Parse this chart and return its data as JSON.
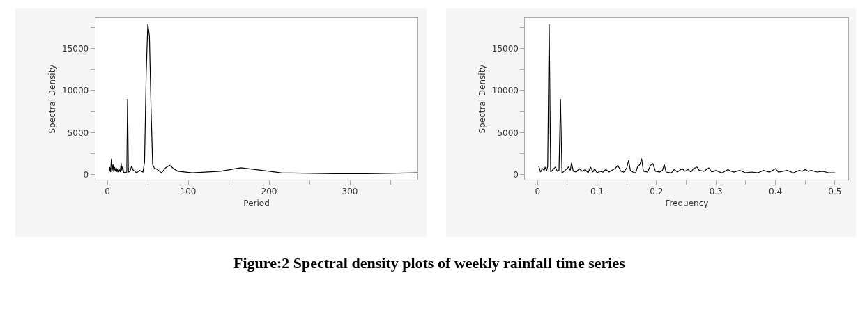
{
  "chart_data": [
    {
      "type": "line",
      "xlabel": "Period",
      "ylabel": "Spectral Density",
      "xlim": [
        -15,
        384
      ],
      "ylim": [
        -600,
        18600
      ],
      "xticks": [
        0,
        {
          "value": 50,
          "label": null
        },
        100,
        {
          "value": 150,
          "label": null
        },
        200,
        {
          "value": 250,
          "label": null
        },
        300,
        {
          "value": 350,
          "label": null
        }
      ],
      "yticks": [
        0,
        {
          "value": 2500,
          "label": null
        },
        5000,
        {
          "value": 7500,
          "label": null
        },
        10000,
        {
          "value": 12500,
          "label": null
        },
        15000,
        {
          "value": 17500,
          "label": null
        }
      ],
      "series": [
        {
          "color": "#000000",
          "x": [
            2,
            3,
            4,
            5,
            6,
            7,
            8,
            9,
            10,
            11,
            12,
            13,
            14,
            15,
            16,
            17,
            18,
            19,
            20,
            22,
            24,
            25,
            26,
            28,
            30,
            32,
            34,
            36,
            40,
            44,
            46,
            48,
            50,
            52,
            54,
            56,
            58,
            62,
            67,
            72,
            77,
            82,
            87,
            105,
            140,
            165,
            200,
            215,
            280,
            320,
            384
          ],
          "values": [
            200,
            900,
            300,
            1900,
            500,
            1200,
            300,
            900,
            400,
            800,
            300,
            700,
            300,
            600,
            300,
            1400,
            500,
            1000,
            300,
            200,
            300,
            9000,
            300,
            400,
            1000,
            500,
            400,
            200,
            500,
            300,
            1500,
            12000,
            17900,
            16500,
            8000,
            1200,
            800,
            600,
            200,
            800,
            1100,
            700,
            400,
            200,
            400,
            800,
            400,
            200,
            100,
            100,
            200
          ]
        }
      ],
      "annotations": [
        "Figure:2 Spectral density plots of weekly rainfall time series"
      ]
    },
    {
      "type": "line",
      "xlabel": "Frequency",
      "ylabel": "Spectral Density",
      "xlim": [
        -0.021,
        0.523
      ],
      "ylim": [
        -600,
        18600
      ],
      "xticks": [
        0,
        {
          "value": 0.05,
          "label": null
        },
        {
          "value": 0.1,
          "label": "0.1"
        },
        {
          "value": 0.15,
          "label": null
        },
        {
          "value": 0.2,
          "label": "0.2"
        },
        {
          "value": 0.25,
          "label": null
        },
        {
          "value": 0.3,
          "label": "0.3"
        },
        {
          "value": 0.35,
          "label": null
        },
        {
          "value": 0.4,
          "label": "0.4"
        },
        {
          "value": 0.45,
          "label": null
        },
        {
          "value": 0.5,
          "label": "0.5"
        }
      ],
      "yticks": [
        0,
        {
          "value": 2500,
          "label": null
        },
        5000,
        {
          "value": 7500,
          "label": null
        },
        10000,
        {
          "value": 12500,
          "label": null
        },
        15000,
        {
          "value": 17500,
          "label": null
        }
      ],
      "series": [
        {
          "color": "#000000",
          "x": [
            0.002,
            0.005,
            0.008,
            0.011,
            0.013,
            0.015,
            0.017,
            0.0195,
            0.022,
            0.026,
            0.03,
            0.033,
            0.036,
            0.0385,
            0.041,
            0.048,
            0.052,
            0.055,
            0.057,
            0.06,
            0.065,
            0.07,
            0.075,
            0.08,
            0.085,
            0.089,
            0.093,
            0.096,
            0.1,
            0.105,
            0.11,
            0.115,
            0.12,
            0.125,
            0.13,
            0.135,
            0.14,
            0.145,
            0.15,
            0.153,
            0.156,
            0.16,
            0.165,
            0.168,
            0.172,
            0.175,
            0.178,
            0.185,
            0.19,
            0.194,
            0.198,
            0.205,
            0.21,
            0.213,
            0.216,
            0.225,
            0.23,
            0.235,
            0.243,
            0.248,
            0.253,
            0.258,
            0.262,
            0.268,
            0.272,
            0.28,
            0.288,
            0.293,
            0.3,
            0.31,
            0.32,
            0.325,
            0.33,
            0.34,
            0.35,
            0.36,
            0.37,
            0.38,
            0.39,
            0.4,
            0.405,
            0.42,
            0.43,
            0.44,
            0.445,
            0.45,
            0.455,
            0.46,
            0.47,
            0.48,
            0.49,
            0.5
          ],
          "values": [
            1000,
            300,
            700,
            500,
            900,
            400,
            1000,
            17900,
            300,
            600,
            900,
            400,
            500,
            9000,
            200,
            600,
            900,
            500,
            1400,
            400,
            300,
            700,
            400,
            600,
            200,
            900,
            300,
            700,
            200,
            400,
            300,
            600,
            300,
            500,
            700,
            1100,
            400,
            300,
            800,
            1700,
            500,
            300,
            200,
            900,
            1200,
            1900,
            400,
            300,
            1100,
            1300,
            400,
            300,
            500,
            1200,
            300,
            200,
            600,
            300,
            700,
            400,
            600,
            300,
            700,
            900,
            500,
            400,
            800,
            300,
            500,
            200,
            600,
            400,
            300,
            500,
            200,
            300,
            200,
            500,
            300,
            700,
            300,
            500,
            200,
            500,
            400,
            600,
            400,
            500,
            300,
            400,
            200,
            200
          ]
        }
      ]
    }
  ]
}
